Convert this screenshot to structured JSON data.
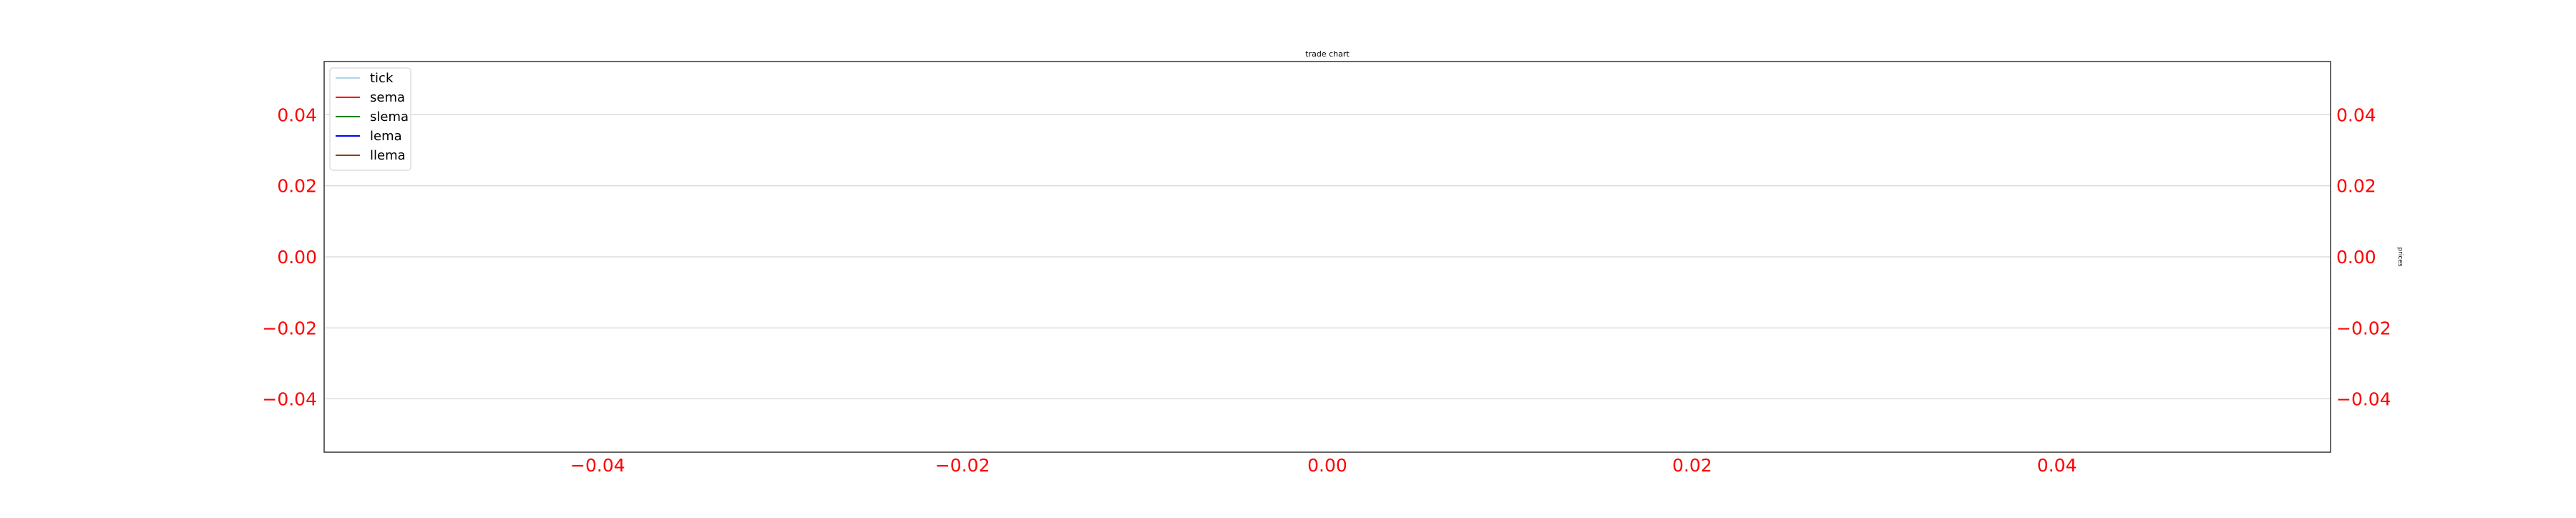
{
  "chart_data": {
    "type": "line",
    "title": "trade chart",
    "xlabel": "",
    "ylabel": "prices",
    "xlim": [
      -0.055,
      0.055
    ],
    "ylim": [
      -0.055,
      0.055
    ],
    "x_ticks": [
      -0.04,
      -0.02,
      0.0,
      0.02,
      0.04
    ],
    "x_tick_labels": [
      "−0.04",
      "−0.02",
      "0.00",
      "0.02",
      "0.04"
    ],
    "y_ticks": [
      0.04,
      0.02,
      0.0,
      -0.02,
      -0.04
    ],
    "y_tick_labels": [
      "0.04",
      "0.02",
      "0.00",
      "−0.02",
      "−0.04"
    ],
    "tick_label_color": "#ff0000",
    "grid": "horizontal",
    "grid_color": "#cccccc",
    "legend_position": "top-left",
    "series": [
      {
        "name": "tick",
        "color": "#add8e6",
        "x": [],
        "y": []
      },
      {
        "name": "sema",
        "color": "#ff0000",
        "x": [],
        "y": []
      },
      {
        "name": "slema",
        "color": "#008000",
        "x": [],
        "y": []
      },
      {
        "name": "lema",
        "color": "#0000ff",
        "x": [],
        "y": []
      },
      {
        "name": "llema",
        "color": "#8b4513",
        "x": [],
        "y": []
      }
    ]
  }
}
